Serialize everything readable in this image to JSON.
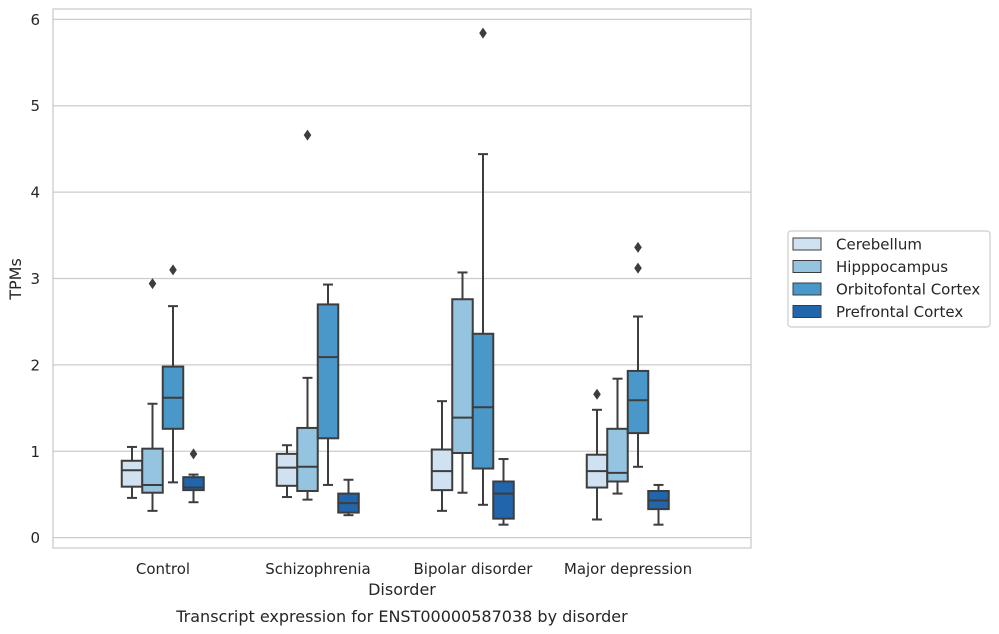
{
  "chart_data": {
    "type": "box",
    "title": "",
    "caption": "Transcript expression for ENST00000587038 by disorder",
    "xlabel": "Disorder",
    "ylabel": "TPMs",
    "ylim": [
      -0.12,
      6.12
    ],
    "yticks": [
      0,
      1,
      2,
      3,
      4,
      5,
      6
    ],
    "grid": true,
    "legend_position": "right",
    "categories": [
      "Control",
      "Schizophrenia",
      "Bipolar disorder",
      "Major depression"
    ],
    "series": [
      {
        "name": "Cerebellum",
        "color": "#d0e1f2",
        "boxes": [
          {
            "whislo": 0.46,
            "q1": 0.59,
            "med": 0.78,
            "q3": 0.89,
            "whishi": 1.05,
            "fliers": []
          },
          {
            "whislo": 0.47,
            "q1": 0.6,
            "med": 0.81,
            "q3": 0.97,
            "whishi": 1.07,
            "fliers": []
          },
          {
            "whislo": 0.31,
            "q1": 0.55,
            "med": 0.77,
            "q3": 1.02,
            "whishi": 1.58,
            "fliers": []
          },
          {
            "whislo": 0.21,
            "q1": 0.58,
            "med": 0.77,
            "q3": 0.96,
            "whishi": 1.48,
            "fliers": [
              1.66
            ]
          }
        ]
      },
      {
        "name": "Hipppocampus",
        "color": "#94c4df",
        "boxes": [
          {
            "whislo": 0.31,
            "q1": 0.52,
            "med": 0.61,
            "q3": 1.03,
            "whishi": 1.55,
            "fliers": [
              2.94
            ]
          },
          {
            "whislo": 0.44,
            "q1": 0.54,
            "med": 0.82,
            "q3": 1.27,
            "whishi": 1.85,
            "fliers": [
              4.66
            ]
          },
          {
            "whislo": 0.52,
            "q1": 0.98,
            "med": 1.39,
            "q3": 2.76,
            "whishi": 3.07,
            "fliers": []
          },
          {
            "whislo": 0.51,
            "q1": 0.65,
            "med": 0.75,
            "q3": 1.26,
            "whishi": 1.84,
            "fliers": []
          }
        ]
      },
      {
        "name": "Orbitofontal Cortex",
        "color": "#4a98c9",
        "boxes": [
          {
            "whislo": 0.64,
            "q1": 1.26,
            "med": 1.62,
            "q3": 1.98,
            "whishi": 2.68,
            "fliers": [
              3.1
            ]
          },
          {
            "whislo": 0.61,
            "q1": 1.15,
            "med": 2.09,
            "q3": 2.7,
            "whishi": 2.93,
            "fliers": []
          },
          {
            "whislo": 0.38,
            "q1": 0.8,
            "med": 1.51,
            "q3": 2.36,
            "whishi": 4.44,
            "fliers": [
              5.84
            ]
          },
          {
            "whislo": 0.82,
            "q1": 1.21,
            "med": 1.59,
            "q3": 1.93,
            "whishi": 2.56,
            "fliers": [
              3.12,
              3.36
            ]
          }
        ]
      },
      {
        "name": "Prefrontal Cortex",
        "color": "#2166ac",
        "boxes": [
          {
            "whislo": 0.41,
            "q1": 0.55,
            "med": 0.58,
            "q3": 0.7,
            "whishi": 0.73,
            "fliers": [
              0.97
            ]
          },
          {
            "whislo": 0.26,
            "q1": 0.29,
            "med": 0.4,
            "q3": 0.51,
            "whishi": 0.67,
            "fliers": []
          },
          {
            "whislo": 0.15,
            "q1": 0.22,
            "med": 0.51,
            "q3": 0.65,
            "whishi": 0.91,
            "fliers": []
          },
          {
            "whislo": 0.15,
            "q1": 0.33,
            "med": 0.43,
            "q3": 0.54,
            "whishi": 0.61,
            "fliers": []
          }
        ]
      }
    ]
  }
}
